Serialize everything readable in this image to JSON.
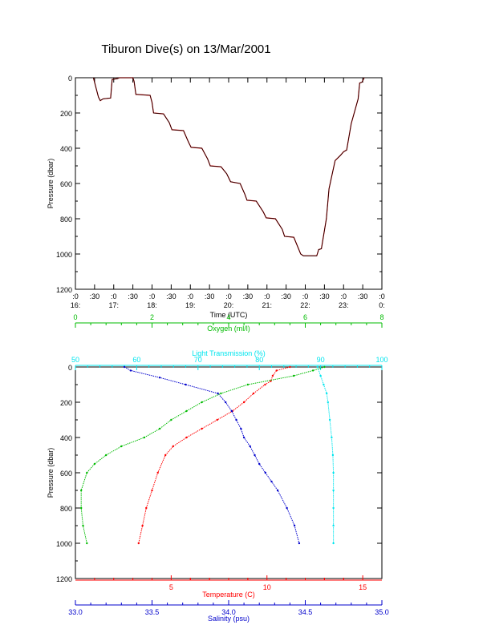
{
  "title": "Tiburon Dive(s) on 13/Mar/2001",
  "colors": {
    "axis": "#000000",
    "pressure_trace": "#000000",
    "pressure_trace_alt": "#ff0000",
    "temperature": "#ff0000",
    "salinity": "#0000cc",
    "oxygen": "#00bb00",
    "light_transmission": "#00e5ee"
  },
  "chart_data": [
    {
      "type": "line",
      "title": "",
      "xlabel": "Time (UTC)",
      "ylabel": "Pressure (dbar)",
      "xlim": [
        16.0,
        24.0
      ],
      "ylim": [
        1200,
        0
      ],
      "y_ticks": [
        "0",
        "200",
        "400",
        "600",
        "800",
        "1000",
        "1200"
      ],
      "x_ticks": [
        {
          "t": 16.0,
          "top": ":0",
          "bottom": "16:"
        },
        {
          "t": 16.5,
          "top": ":30",
          "bottom": ""
        },
        {
          "t": 17.0,
          "top": ":0",
          "bottom": "17:"
        },
        {
          "t": 17.5,
          "top": ":30",
          "bottom": ""
        },
        {
          "t": 18.0,
          "top": ":0",
          "bottom": "18:"
        },
        {
          "t": 18.5,
          "top": ":30",
          "bottom": ""
        },
        {
          "t": 19.0,
          "top": ":0",
          "bottom": "19:"
        },
        {
          "t": 19.5,
          "top": ":30",
          "bottom": ""
        },
        {
          "t": 20.0,
          "top": ":0",
          "bottom": "20:"
        },
        {
          "t": 20.5,
          "top": ":30",
          "bottom": ""
        },
        {
          "t": 21.0,
          "top": ":0",
          "bottom": "21:"
        },
        {
          "t": 21.5,
          "top": ":30",
          "bottom": ""
        },
        {
          "t": 22.0,
          "top": ":0",
          "bottom": "22:"
        },
        {
          "t": 22.5,
          "top": ":30",
          "bottom": ""
        },
        {
          "t": 23.0,
          "top": ":0",
          "bottom": "23:"
        },
        {
          "t": 23.5,
          "top": ":30",
          "bottom": ""
        },
        {
          "t": 24.0,
          "top": ":0",
          "bottom": "0:"
        }
      ],
      "series": [
        {
          "x": [
            16.47,
            16.6,
            16.65,
            16.72,
            16.92,
            16.96,
            17.1,
            17.15,
            17.5,
            17.53,
            17.58,
            17.62,
            17.95,
            18.0,
            18.04,
            18.3,
            18.45,
            18.52,
            18.82,
            18.95,
            19.02,
            19.3,
            19.45,
            19.52,
            19.8,
            19.95,
            20.05,
            20.3,
            20.42,
            20.48,
            20.72,
            20.9,
            20.98,
            21.22,
            21.4,
            21.46,
            21.7,
            21.88,
            21.95,
            22.3,
            22.35,
            22.42,
            22.55,
            22.62,
            22.78,
            22.92,
            23.0,
            23.08,
            23.2,
            23.38,
            23.42,
            23.48,
            23.54
          ],
          "y": [
            0,
            110,
            130,
            120,
            115,
            10,
            5,
            0,
            0,
            20,
            95,
            95,
            100,
            140,
            200,
            205,
            255,
            295,
            300,
            365,
            395,
            400,
            460,
            500,
            505,
            545,
            590,
            600,
            660,
            695,
            700,
            760,
            795,
            800,
            860,
            900,
            905,
            1000,
            1010,
            1010,
            975,
            970,
            800,
            630,
            470,
            440,
            420,
            410,
            260,
            120,
            30,
            25,
            0
          ]
        }
      ]
    },
    {
      "type": "scatter",
      "title": "",
      "ylabel": "Pressure (dbar)",
      "ylim": [
        1200,
        0
      ],
      "y_ticks": [
        "0",
        "200",
        "400",
        "600",
        "800",
        "1000",
        "1200"
      ],
      "axes": {
        "temperature": {
          "label": "Temperature (C)",
          "range": [
            0,
            16
          ],
          "ticks": [
            "5",
            "10",
            "15"
          ]
        },
        "salinity": {
          "label": "Salinity (psu)",
          "range": [
            33.0,
            35.0
          ],
          "ticks": [
            "33.0",
            "33.5",
            "34.0",
            "34.5",
            "35.0"
          ]
        },
        "oxygen": {
          "label": "Oxygen (ml/l)",
          "range": [
            0,
            8
          ],
          "ticks": [
            "0",
            "2",
            "4",
            "6",
            "8"
          ]
        },
        "light_transmission": {
          "label": "Light Transmission (%)",
          "range": [
            50,
            100
          ],
          "ticks": [
            "50",
            "60",
            "70",
            "80",
            "90",
            "100"
          ]
        }
      },
      "series": [
        {
          "variable": "temperature",
          "p": [
            0,
            20,
            50,
            80,
            100,
            150,
            200,
            250,
            300,
            350,
            400,
            450,
            500,
            600,
            700,
            800,
            900,
            1000
          ],
          "v": [
            11.2,
            10.5,
            10.3,
            10.2,
            9.9,
            9.3,
            8.8,
            8.2,
            7.4,
            6.6,
            5.8,
            5.1,
            4.7,
            4.3,
            4.0,
            3.7,
            3.5,
            3.3
          ]
        },
        {
          "variable": "salinity",
          "p": [
            0,
            20,
            60,
            100,
            150,
            200,
            250,
            300,
            350,
            400,
            450,
            500,
            550,
            600,
            650,
            700,
            800,
            900,
            1000
          ],
          "v": [
            33.32,
            33.36,
            33.55,
            33.72,
            33.93,
            33.98,
            34.02,
            34.05,
            34.08,
            34.1,
            34.14,
            34.17,
            34.2,
            34.24,
            34.28,
            34.32,
            34.38,
            34.43,
            34.46
          ]
        },
        {
          "variable": "oxygen",
          "p": [
            0,
            20,
            50,
            100,
            150,
            200,
            250,
            300,
            350,
            400,
            450,
            500,
            550,
            600,
            700,
            800,
            900,
            1000
          ],
          "v": [
            6.5,
            6.2,
            5.7,
            4.5,
            3.8,
            3.3,
            2.9,
            2.5,
            2.2,
            1.8,
            1.2,
            0.8,
            0.5,
            0.3,
            0.15,
            0.15,
            0.2,
            0.3
          ]
        },
        {
          "variable": "light_transmission",
          "p": [
            0,
            50,
            100,
            150,
            200,
            300,
            400,
            500,
            600,
            700,
            800,
            900,
            1000
          ],
          "v": [
            89.5,
            90.0,
            90.5,
            91.0,
            91.2,
            91.5,
            91.8,
            92.0,
            92.1,
            92.1,
            92.1,
            92.1,
            92.1
          ]
        }
      ]
    }
  ]
}
